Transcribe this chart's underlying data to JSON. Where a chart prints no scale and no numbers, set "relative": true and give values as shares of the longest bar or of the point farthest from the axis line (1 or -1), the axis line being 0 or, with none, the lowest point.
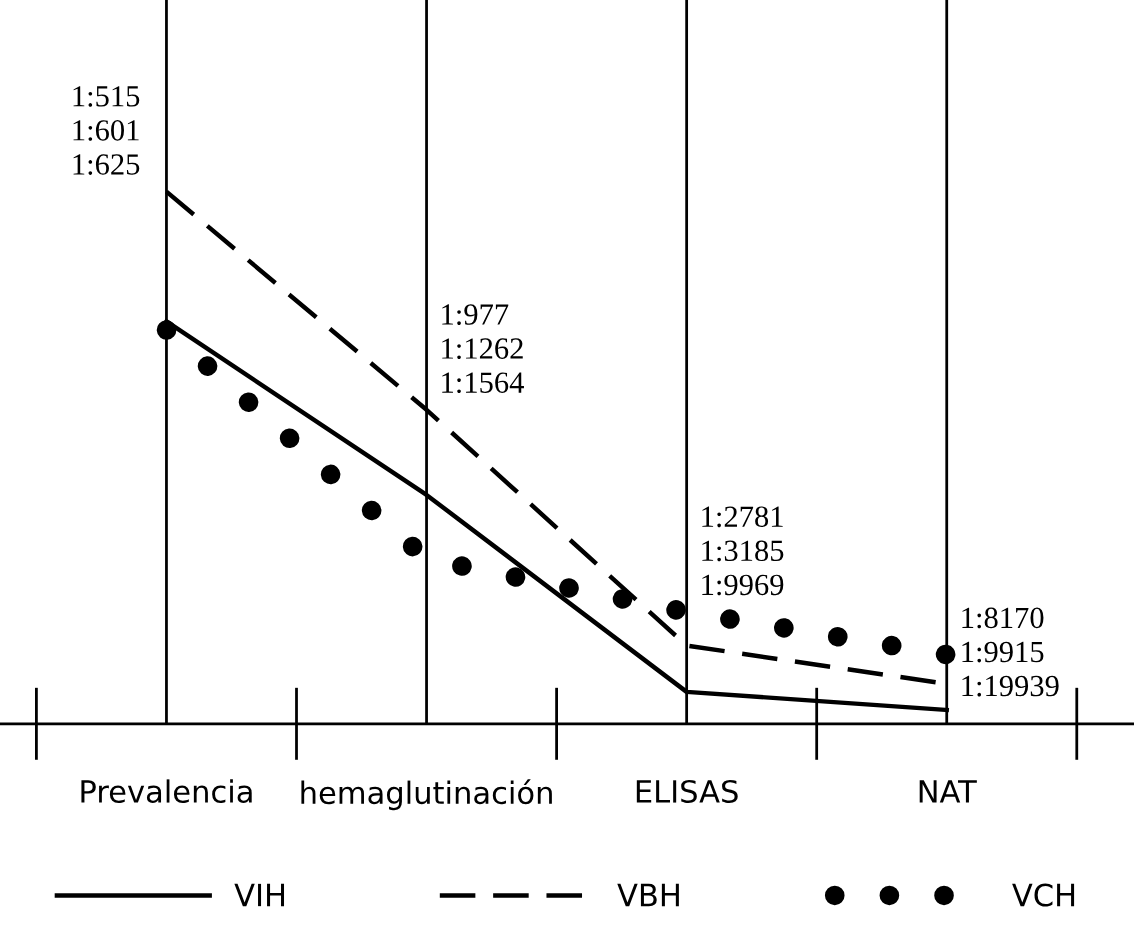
{
  "chart_data": {
    "type": "line",
    "relative": true,
    "categories": [
      "Prevalencia",
      "hemaglutinación",
      "ELISAS",
      "NAT"
    ],
    "series": [
      {
        "name": "VIH",
        "color": "#000000",
        "line_style": "solid",
        "values": [
          0.756,
          0.43,
          0.06,
          0.026
        ]
      },
      {
        "name": "VBH",
        "color": "#000000",
        "line_style": "dashed",
        "values": [
          1,
          0.59,
          0.147,
          0.075
        ]
      },
      {
        "name": "VCH",
        "color": "#000000",
        "line_style": "dotted",
        "values": [
          0.74,
          0.31,
          0.21,
          0.13
        ]
      }
    ],
    "annotations": [
      "1:515\n1:601\n1:625",
      "1:977\n1:1262\n1:1564",
      "1:2781\n1:3185\n1:9969",
      "1:8170\n1:9915\n1:19939"
    ],
    "grid": "x",
    "legend": "bottom",
    "marker": "none"
  }
}
